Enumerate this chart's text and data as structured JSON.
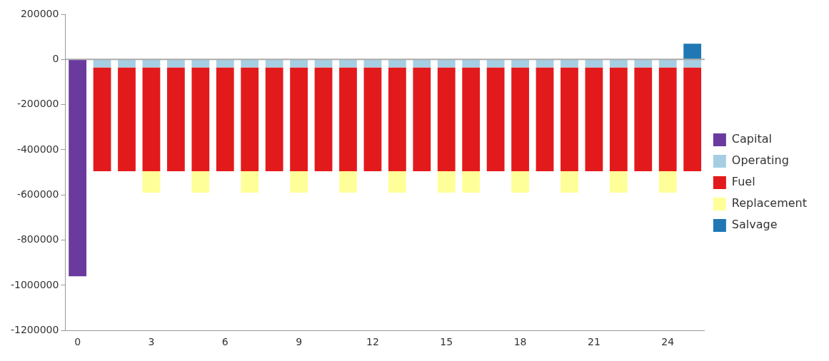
{
  "chart_data": {
    "type": "bar",
    "stacked": true,
    "legend": "right",
    "grid": false,
    "categories": [
      "0",
      null,
      null,
      "3",
      null,
      null,
      "6",
      null,
      null,
      "9",
      null,
      null,
      "12",
      null,
      null,
      "15",
      null,
      null,
      "18",
      null,
      null,
      "21",
      null,
      null,
      "24",
      null
    ],
    "ref_lines": [
      {
        "axis": "y",
        "value": 0,
        "color": "#aaaaaa"
      }
    ],
    "ylim": [
      -1200000,
      200000
    ],
    "yticks": [
      -1200000,
      -1000000,
      -800000,
      -600000,
      -400000,
      -200000,
      0,
      200000
    ],
    "series": [
      {
        "name": "Capital",
        "color": "#6b3a9e",
        "values": [
          -960000,
          null,
          null,
          null,
          null,
          null,
          null,
          null,
          null,
          null,
          null,
          null,
          null,
          null,
          null,
          null,
          null,
          null,
          null,
          null,
          null,
          null,
          null,
          null,
          null,
          null
        ]
      },
      {
        "name": "Operating",
        "color": "#a6cee3",
        "values": [
          null,
          -35000,
          -35000,
          -35000,
          -35000,
          -35000,
          -35000,
          -35000,
          -35000,
          -35000,
          -35000,
          -35000,
          -35000,
          -35000,
          -35000,
          -35000,
          -35000,
          -35000,
          -35000,
          -35000,
          -35000,
          -35000,
          -35000,
          -35000,
          -35000,
          -35000
        ]
      },
      {
        "name": "Fuel",
        "color": "#e31a1c",
        "values": [
          null,
          -460000,
          -460000,
          -460000,
          -460000,
          -460000,
          -460000,
          -460000,
          -460000,
          -460000,
          -460000,
          -460000,
          -460000,
          -460000,
          -460000,
          -460000,
          -460000,
          -460000,
          -460000,
          -460000,
          -460000,
          -460000,
          -460000,
          -460000,
          -460000,
          -460000
        ]
      },
      {
        "name": "Replacement",
        "color": "#ffff99",
        "values": [
          null,
          null,
          null,
          -95000,
          null,
          -95000,
          null,
          -95000,
          null,
          -95000,
          null,
          -95000,
          null,
          -95000,
          null,
          -95000,
          -95000,
          null,
          -95000,
          null,
          -95000,
          null,
          -95000,
          null,
          -95000,
          null
        ]
      },
      {
        "name": "Salvage",
        "color": "#1f78b4",
        "values": [
          null,
          null,
          null,
          null,
          null,
          null,
          null,
          null,
          null,
          null,
          null,
          null,
          null,
          null,
          null,
          null,
          null,
          null,
          null,
          null,
          null,
          null,
          null,
          null,
          null,
          70000
        ]
      }
    ]
  }
}
